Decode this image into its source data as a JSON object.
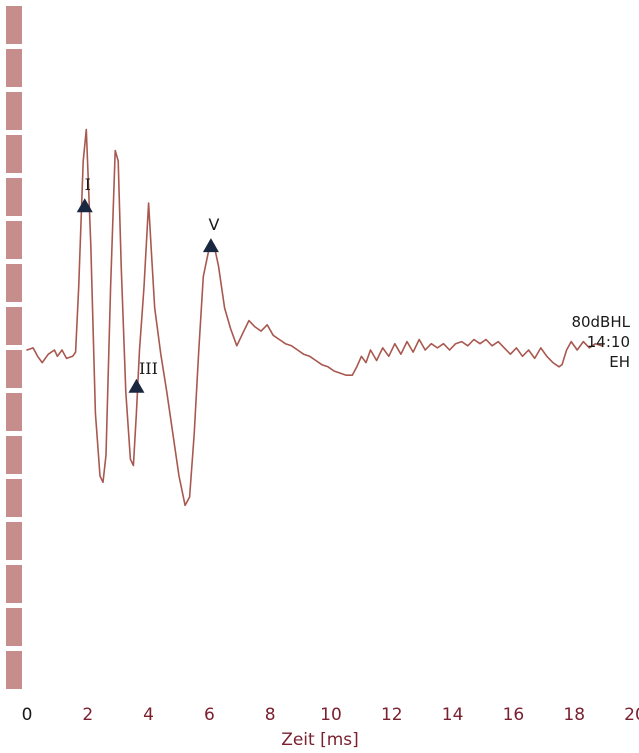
{
  "chart_data": {
    "type": "line",
    "xlabel": "Zeit [ms]",
    "xlim": [
      0,
      20
    ],
    "x_ticks": [
      "0",
      "2",
      "4",
      "6",
      "8",
      "10",
      "12",
      "14",
      "16",
      "18",
      "20"
    ],
    "grid": false,
    "series": [
      {
        "color": "#a8584f",
        "points": [
          [
            0.0,
            0.0
          ],
          [
            0.2,
            0.1
          ],
          [
            0.35,
            -0.3
          ],
          [
            0.5,
            -0.6
          ],
          [
            0.7,
            -0.2
          ],
          [
            0.9,
            0.0
          ],
          [
            1.0,
            -0.3
          ],
          [
            1.15,
            0.0
          ],
          [
            1.3,
            -0.4
          ],
          [
            1.5,
            -0.3
          ],
          [
            1.6,
            -0.1
          ],
          [
            1.7,
            3.0
          ],
          [
            1.85,
            9.0
          ],
          [
            1.95,
            10.5
          ],
          [
            2.1,
            5.0
          ],
          [
            2.25,
            -3.0
          ],
          [
            2.4,
            -6.0
          ],
          [
            2.5,
            -6.3
          ],
          [
            2.6,
            -5.0
          ],
          [
            2.75,
            3.0
          ],
          [
            2.9,
            9.5
          ],
          [
            3.0,
            9.0
          ],
          [
            3.1,
            4.0
          ],
          [
            3.25,
            -2.0
          ],
          [
            3.4,
            -5.2
          ],
          [
            3.5,
            -5.5
          ],
          [
            3.6,
            -3.0
          ],
          [
            3.7,
            0.0
          ],
          [
            3.85,
            3.0
          ],
          [
            4.0,
            7.0
          ],
          [
            4.1,
            4.5
          ],
          [
            4.2,
            2.0
          ],
          [
            4.4,
            -0.2
          ],
          [
            4.6,
            -2.0
          ],
          [
            4.8,
            -4.0
          ],
          [
            5.0,
            -6.0
          ],
          [
            5.2,
            -7.4
          ],
          [
            5.35,
            -7.0
          ],
          [
            5.5,
            -4.0
          ],
          [
            5.65,
            0.0
          ],
          [
            5.8,
            3.5
          ],
          [
            6.0,
            4.9
          ],
          [
            6.15,
            5.0
          ],
          [
            6.3,
            4.0
          ],
          [
            6.5,
            2.0
          ],
          [
            6.7,
            1.0
          ],
          [
            6.9,
            0.2
          ],
          [
            7.1,
            0.8
          ],
          [
            7.3,
            1.4
          ],
          [
            7.5,
            1.1
          ],
          [
            7.7,
            0.9
          ],
          [
            7.9,
            1.2
          ],
          [
            8.1,
            0.7
          ],
          [
            8.3,
            0.5
          ],
          [
            8.5,
            0.3
          ],
          [
            8.7,
            0.2
          ],
          [
            8.9,
            0.0
          ],
          [
            9.1,
            -0.2
          ],
          [
            9.3,
            -0.3
          ],
          [
            9.5,
            -0.5
          ],
          [
            9.7,
            -0.7
          ],
          [
            9.9,
            -0.8
          ],
          [
            10.1,
            -1.0
          ],
          [
            10.3,
            -1.1
          ],
          [
            10.5,
            -1.2
          ],
          [
            10.7,
            -1.2
          ],
          [
            10.85,
            -0.8
          ],
          [
            11.0,
            -0.3
          ],
          [
            11.15,
            -0.6
          ],
          [
            11.3,
            0.0
          ],
          [
            11.5,
            -0.5
          ],
          [
            11.7,
            0.1
          ],
          [
            11.9,
            -0.3
          ],
          [
            12.1,
            0.3
          ],
          [
            12.3,
            -0.2
          ],
          [
            12.5,
            0.4
          ],
          [
            12.7,
            -0.1
          ],
          [
            12.9,
            0.5
          ],
          [
            13.1,
            0.0
          ],
          [
            13.3,
            0.3
          ],
          [
            13.5,
            0.1
          ],
          [
            13.7,
            0.3
          ],
          [
            13.9,
            0.0
          ],
          [
            14.1,
            0.3
          ],
          [
            14.3,
            0.4
          ],
          [
            14.5,
            0.2
          ],
          [
            14.7,
            0.5
          ],
          [
            14.9,
            0.3
          ],
          [
            15.1,
            0.5
          ],
          [
            15.3,
            0.2
          ],
          [
            15.5,
            0.4
          ],
          [
            15.7,
            0.1
          ],
          [
            15.9,
            -0.2
          ],
          [
            16.1,
            0.1
          ],
          [
            16.3,
            -0.3
          ],
          [
            16.5,
            0.0
          ],
          [
            16.7,
            -0.4
          ],
          [
            16.9,
            0.1
          ],
          [
            17.1,
            -0.3
          ],
          [
            17.3,
            -0.6
          ],
          [
            17.5,
            -0.8
          ],
          [
            17.6,
            -0.7
          ],
          [
            17.75,
            0.0
          ],
          [
            17.9,
            0.4
          ],
          [
            18.1,
            0.0
          ],
          [
            18.3,
            0.4
          ],
          [
            18.5,
            0.1
          ],
          [
            18.7,
            0.3
          ],
          [
            18.9,
            0.2
          ]
        ]
      }
    ],
    "peaks": [
      {
        "label": "I",
        "x": 1.9,
        "y": 6.8
      },
      {
        "label": "III",
        "x": 3.6,
        "y": -1.8
      },
      {
        "label": "V",
        "x": 6.05,
        "y": 4.9
      }
    ],
    "annotation": [
      "80dBHL",
      "14:10",
      "EH"
    ],
    "colors": {
      "trace": "#a8584f",
      "tick_first": "#1a1a1a",
      "tick_rest": "#7a2130",
      "axis_title": "#7a2130",
      "marker": "#1a2740",
      "scale_bar": "#c68d8d"
    }
  }
}
